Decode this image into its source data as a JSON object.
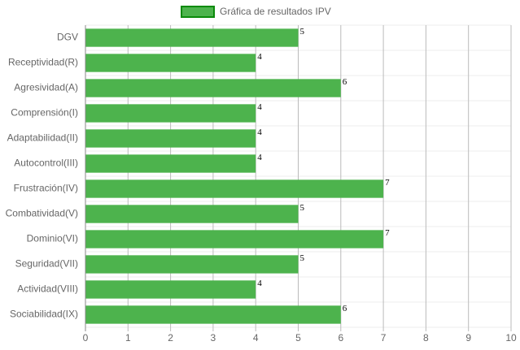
{
  "chart_data": {
    "type": "bar",
    "orientation": "horizontal",
    "categories": [
      "DGV",
      "Receptividad(R)",
      "Agresividad(A)",
      "Comprensión(I)",
      "Adaptabilidad(II)",
      "Autocontrol(III)",
      "Frustración(IV)",
      "Combatividad(V)",
      "Dominio(VI)",
      "Seguridad(VII)",
      "Actividad(VIII)",
      "Sociabilidad(IX)"
    ],
    "series": [
      {
        "name": "Gráfica de resultados IPV",
        "color": "#4db34d",
        "values": [
          5,
          4,
          6,
          4,
          4,
          4,
          7,
          5,
          7,
          5,
          4,
          6
        ]
      }
    ],
    "xlim": [
      0,
      10
    ],
    "xticks": [
      0,
      1,
      2,
      3,
      4,
      5,
      6,
      7,
      8,
      9,
      10
    ],
    "grid": true,
    "legend": "top"
  }
}
